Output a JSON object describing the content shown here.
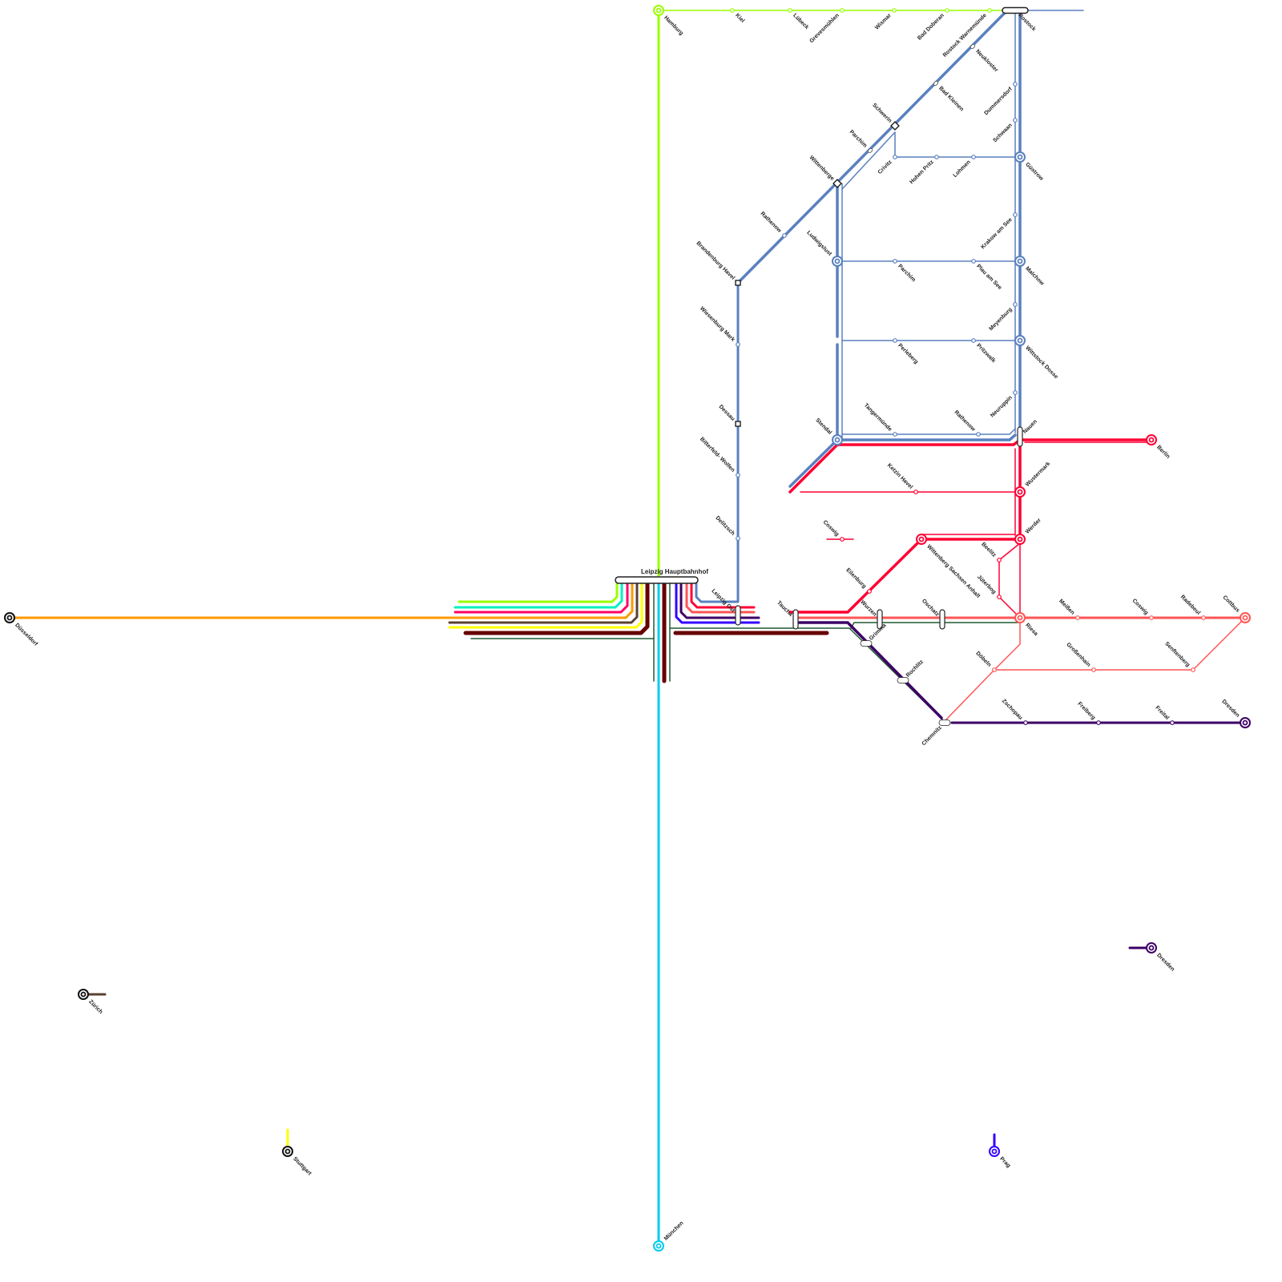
{
  "colors": {
    "lime": "#99ff00",
    "steelblue": "#5a80bf",
    "red": "#ff0033",
    "salmon": "#ff5555",
    "purple": "#3d0066",
    "blue": "#3300ff",
    "darkgreen": "#1e5a32",
    "maroon": "#660000",
    "cyan": "#00ccee",
    "teal": "#00f0c0",
    "pink": "#ff0066",
    "orange": "#ff9900",
    "brown": "#5b4030",
    "yellow": "#ffff00"
  },
  "hub": {
    "name": "Leipzig Hauptbahnhof"
  },
  "stations": [
    {
      "name": "Hamburg"
    },
    {
      "name": "Kiel"
    },
    {
      "name": "Lübeck"
    },
    {
      "name": "Grevesmühlen"
    },
    {
      "name": "Wismar"
    },
    {
      "name": "Bad Doberan"
    },
    {
      "name": "Rostock Warnemünde"
    },
    {
      "name": "Rostock"
    },
    {
      "name": "Neukloster"
    },
    {
      "name": "Bad Kleinen"
    },
    {
      "name": "Schwerin"
    },
    {
      "name": "Parchim"
    },
    {
      "name": "Wittenberge"
    },
    {
      "name": "Rathenow"
    },
    {
      "name": "Brandenburg Havel"
    },
    {
      "name": "Wiesenburg Mark"
    },
    {
      "name": "Dessau"
    },
    {
      "name": "Bitterfeld- Wolfen"
    },
    {
      "name": "Delitzsch"
    },
    {
      "name": "Leipzig Ost"
    },
    {
      "name": "Dummersdorf"
    },
    {
      "name": "Schwaan"
    },
    {
      "name": "Güstrow"
    },
    {
      "name": "Krakow am See"
    },
    {
      "name": "Malchow"
    },
    {
      "name": "Meyenburg"
    },
    {
      "name": "Wittstock Dosse"
    },
    {
      "name": "Neuruppin"
    },
    {
      "name": "Nauen"
    },
    {
      "name": "Crivitz"
    },
    {
      "name": "Hohen Pritz"
    },
    {
      "name": "Lohmen"
    },
    {
      "name": "Ludwigslust"
    },
    {
      "name": "Parchim"
    },
    {
      "name": "Plau am See"
    },
    {
      "name": "Perleberg"
    },
    {
      "name": "Pritzwalk"
    },
    {
      "name": "Stendal"
    },
    {
      "name": "Tangermünde"
    },
    {
      "name": "Rathenow"
    },
    {
      "name": "Berlin"
    },
    {
      "name": "Wustermark"
    },
    {
      "name": "Ketzin Havel"
    },
    {
      "name": "Werder"
    },
    {
      "name": "Coswig"
    },
    {
      "name": "Wittenberg Sachsen Anhalt"
    },
    {
      "name": "Beelitz"
    },
    {
      "name": "Jüterbog"
    },
    {
      "name": "Eilenburg"
    },
    {
      "name": "Riesa"
    },
    {
      "name": "Taucha"
    },
    {
      "name": "Wurzen"
    },
    {
      "name": "Oschatz"
    },
    {
      "name": "Grimma"
    },
    {
      "name": "Rochlitz"
    },
    {
      "name": "Chemnitz"
    },
    {
      "name": "Döbeln"
    },
    {
      "name": "Großenhain"
    },
    {
      "name": "Senftenberg"
    },
    {
      "name": "Meißen"
    },
    {
      "name": "Coswig"
    },
    {
      "name": "Radebeul"
    },
    {
      "name": "Cottbus"
    },
    {
      "name": "Zschopau"
    },
    {
      "name": "Freiberg"
    },
    {
      "name": "Freital"
    },
    {
      "name": "Dresden"
    },
    {
      "name": "Dresden"
    },
    {
      "name": "Düsseldorf"
    },
    {
      "name": "Zürich"
    },
    {
      "name": "Stuttgart"
    },
    {
      "name": "Prag"
    },
    {
      "name": "München"
    }
  ]
}
